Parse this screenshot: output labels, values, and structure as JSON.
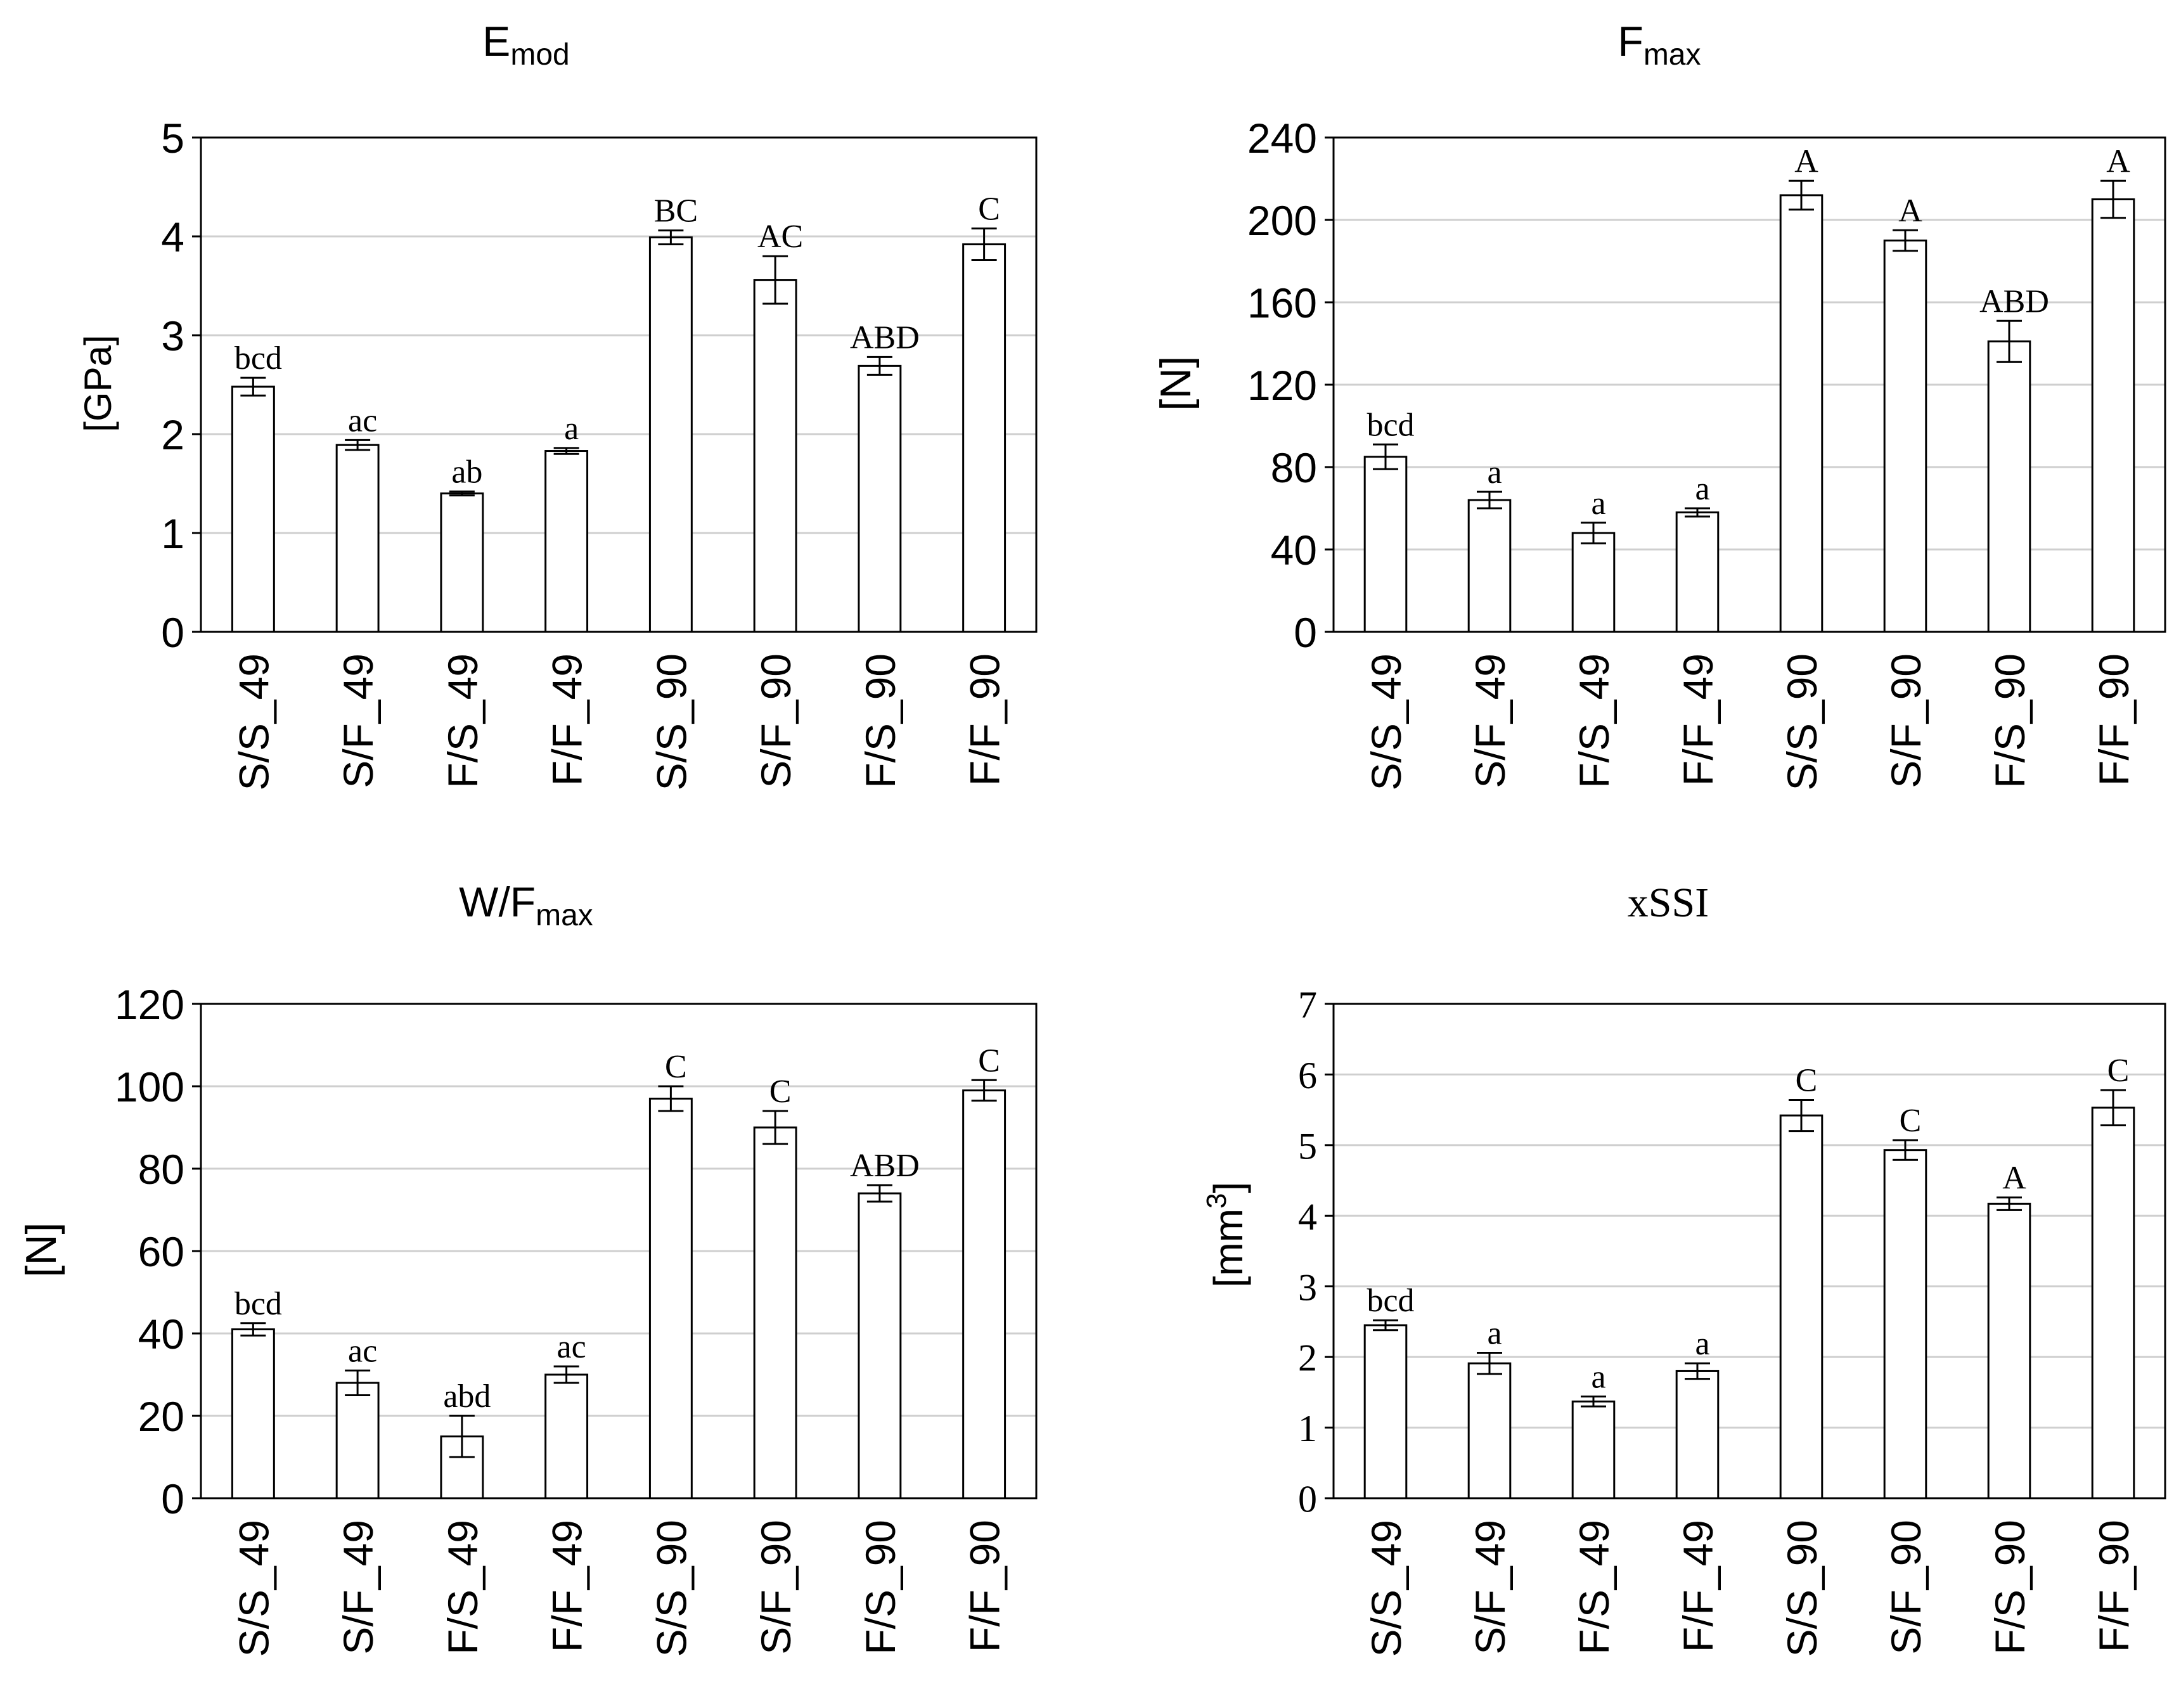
{
  "figure": {
    "panel_count": 4
  },
  "chart_data": [
    {
      "id": "emod",
      "type": "bar",
      "title": "E",
      "title_sub": "mod",
      "ylabel": "[GPa]",
      "xlabel": "",
      "ylim": [
        0,
        5
      ],
      "yticks": [
        "0",
        "1",
        "2",
        "3",
        "4",
        "5"
      ],
      "grid": true,
      "categories": [
        "S/S_49",
        "S/F_49",
        "F/S_49",
        "F/F_49",
        "S/S_90",
        "S/F_90",
        "F/S_90",
        "F/F_90"
      ],
      "values": [
        2.48,
        1.89,
        1.4,
        1.83,
        3.99,
        3.56,
        2.69,
        3.92
      ],
      "errors": [
        0.09,
        0.05,
        0.02,
        0.03,
        0.07,
        0.24,
        0.09,
        0.16
      ],
      "annotations": [
        "bcd",
        "ac",
        "ab",
        "a",
        "BC",
        "AC",
        "ABD",
        "C"
      ]
    },
    {
      "id": "fmax",
      "type": "bar",
      "title": "F",
      "title_sub": "max",
      "ylabel": "[N]",
      "xlabel": "",
      "ylim": [
        0,
        240
      ],
      "yticks": [
        "0",
        "40",
        "80",
        "120",
        "160",
        "200",
        "240"
      ],
      "grid": true,
      "categories": [
        "S/S_49",
        "S/F_49",
        "F/S_49",
        "F/F_49",
        "S/S_90",
        "S/F_90",
        "F/S_90",
        "F/F_90"
      ],
      "values": [
        85,
        64,
        48,
        58,
        212,
        190,
        141,
        210
      ],
      "errors": [
        6,
        4,
        5,
        2,
        7,
        5,
        10,
        9
      ],
      "annotations": [
        "bcd",
        "a",
        "a",
        "a",
        "A",
        "A",
        "ABD",
        "A"
      ]
    },
    {
      "id": "wfmax",
      "type": "bar",
      "title": "W/F",
      "title_sub": "max",
      "ylabel": "[N]",
      "xlabel": "",
      "ylim": [
        0,
        120
      ],
      "yticks": [
        "0",
        "20",
        "40",
        "60",
        "80",
        "100",
        "120"
      ],
      "grid": true,
      "categories": [
        "S/S_49",
        "S/F_49",
        "F/S_49",
        "F/F_49",
        "S/S_90",
        "S/F_90",
        "F/S_90",
        "F/F_90"
      ],
      "values": [
        41,
        28,
        15,
        30,
        97,
        90,
        74,
        99
      ],
      "errors": [
        1.5,
        3,
        5,
        2,
        3,
        4,
        2,
        2.5
      ],
      "annotations": [
        "bcd",
        "ac",
        "abd",
        "ac",
        "C",
        "C",
        "ABD",
        "C"
      ]
    },
    {
      "id": "xssi",
      "type": "bar",
      "title": "xSSI",
      "title_sub": "",
      "ylabel": "[mm",
      "ylabel_sup": "3",
      "ylabel_end": "]",
      "xlabel": "",
      "ylim": [
        0,
        7
      ],
      "yticks": [
        "0",
        "1",
        "2",
        "3",
        "4",
        "5",
        "6",
        "7"
      ],
      "grid": true,
      "categories": [
        "S/S_49",
        "S/F_49",
        "F/S_49",
        "F/F_49",
        "S/S_90",
        "S/F_90",
        "F/S_90",
        "F/F_90"
      ],
      "values": [
        2.45,
        1.91,
        1.37,
        1.8,
        5.42,
        4.93,
        4.17,
        5.53
      ],
      "errors": [
        0.07,
        0.15,
        0.07,
        0.11,
        0.22,
        0.14,
        0.09,
        0.25
      ],
      "annotations": [
        "bcd",
        "a",
        "a",
        "a",
        "C",
        "C",
        "A",
        "C"
      ]
    }
  ]
}
